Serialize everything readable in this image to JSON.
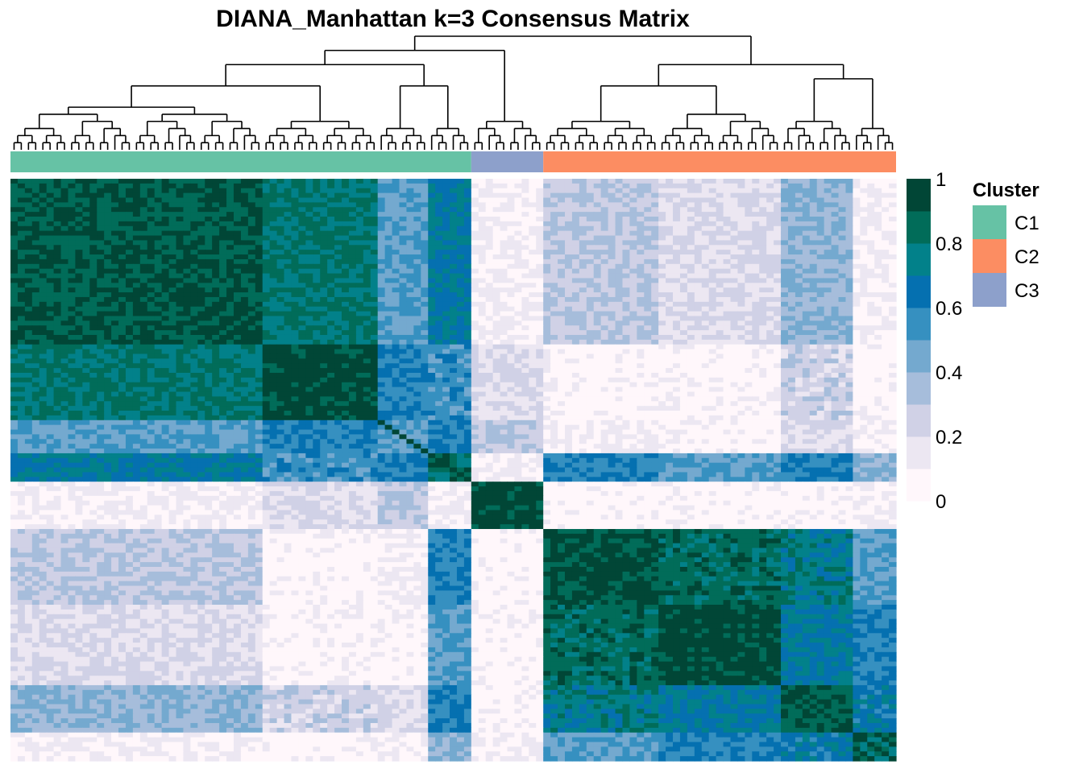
{
  "chart_data": {
    "type": "heatmap",
    "title": "DIANA_Manhattan k=3 Consensus Matrix",
    "value_range": [
      0,
      1
    ],
    "colorbar": {
      "ticks": [
        0,
        0.2,
        0.4,
        0.6,
        0.8,
        1
      ],
      "tick_labels": [
        "0",
        "0.2",
        "0.4",
        "0.6",
        "0.8",
        "1"
      ],
      "colors": [
        "#fff7fb",
        "#ece7f2",
        "#d0d1e6",
        "#a6bddb",
        "#74a9cf",
        "#3690c0",
        "#0570b0",
        "#02818a",
        "#016c59",
        "#014636"
      ]
    },
    "legend": {
      "title": "Cluster",
      "placement": "right",
      "entries": [
        {
          "label": "C1",
          "color": "#66c2a5"
        },
        {
          "label": "C2",
          "color": "#fc8d62"
        },
        {
          "label": "C3",
          "color": "#8da0cb"
        }
      ]
    },
    "column_clusters": [
      {
        "label": "C1",
        "n_samples": 64
      },
      {
        "label": "C3",
        "n_samples": 10
      },
      {
        "label": "C2",
        "n_samples": 49
      }
    ],
    "sample_blocks": [
      {
        "cluster": "C1",
        "n": 35
      },
      {
        "cluster": "C1",
        "n": 16
      },
      {
        "cluster": "C1",
        "n": 7
      },
      {
        "cluster": "C1",
        "n": 6
      },
      {
        "cluster": "C3",
        "n": 10
      },
      {
        "cluster": "C2",
        "n": 16
      },
      {
        "cluster": "C2",
        "n": 17
      },
      {
        "cluster": "C2",
        "n": 10
      },
      {
        "cluster": "C2",
        "n": 6
      }
    ],
    "block_consensus": [
      [
        0.9,
        0.8,
        0.5,
        0.7,
        0.1,
        0.3,
        0.2,
        0.4,
        0.1
      ],
      [
        0.8,
        0.95,
        0.6,
        0.55,
        0.2,
        0.05,
        0.05,
        0.25,
        0.05
      ],
      [
        0.5,
        0.6,
        0.5,
        0.6,
        0.3,
        0.1,
        0.05,
        0.2,
        0.1
      ],
      [
        0.7,
        0.55,
        0.6,
        0.85,
        0.1,
        0.6,
        0.5,
        0.6,
        0.4
      ],
      [
        0.1,
        0.2,
        0.3,
        0.1,
        0.95,
        0.05,
        0.05,
        0.05,
        0.1
      ],
      [
        0.3,
        0.05,
        0.1,
        0.6,
        0.05,
        0.92,
        0.85,
        0.75,
        0.5
      ],
      [
        0.2,
        0.05,
        0.05,
        0.5,
        0.05,
        0.85,
        0.95,
        0.7,
        0.6
      ],
      [
        0.4,
        0.25,
        0.2,
        0.6,
        0.05,
        0.75,
        0.7,
        0.9,
        0.65
      ],
      [
        0.1,
        0.05,
        0.1,
        0.4,
        0.1,
        0.5,
        0.6,
        0.65,
        0.85
      ]
    ],
    "grid": false
  }
}
